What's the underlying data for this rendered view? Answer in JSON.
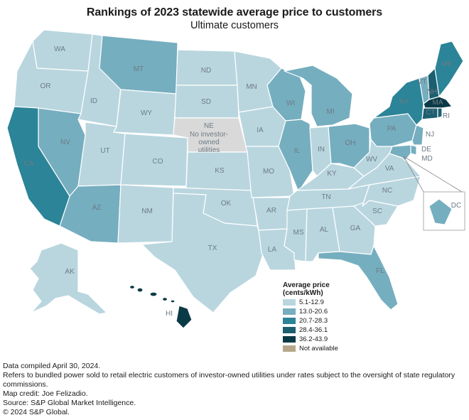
{
  "title": "Rankings of 2023 statewide average price to customers",
  "subtitle": "Ultimate customers",
  "legend": {
    "title_line1": "Average price",
    "title_line2": "(cents/kWh)",
    "items": [
      {
        "label": "5.1-12.9",
        "color": "#b9d6df"
      },
      {
        "label": "13.0-20.6",
        "color": "#75aebf"
      },
      {
        "label": "20.7-28.3",
        "color": "#2b8497"
      },
      {
        "label": "28.4-36.1",
        "color": "#1b5f70"
      },
      {
        "label": "36.2-43.9",
        "color": "#0b3a47"
      },
      {
        "label": "Not available",
        "color": "#b5a88a"
      }
    ]
  },
  "na_state": {
    "abbr": "NE",
    "note_line1": "No investor-",
    "note_line2": "owned",
    "note_line3": "utilities",
    "color": "#d9d9d9"
  },
  "states": {
    "WA": "5.1-12.9",
    "OR": "5.1-12.9",
    "ID": "5.1-12.9",
    "MT": "13.0-20.6",
    "WY": "5.1-12.9",
    "NV": "13.0-20.6",
    "UT": "5.1-12.9",
    "CO": "5.1-12.9",
    "AZ": "13.0-20.6",
    "NM": "5.1-12.9",
    "CA": "20.7-28.3",
    "ND": "5.1-12.9",
    "SD": "5.1-12.9",
    "KS": "5.1-12.9",
    "OK": "5.1-12.9",
    "TX": "5.1-12.9",
    "MN": "5.1-12.9",
    "IA": "5.1-12.9",
    "MO": "5.1-12.9",
    "AR": "5.1-12.9",
    "LA": "5.1-12.9",
    "WI": "13.0-20.6",
    "IL": "13.0-20.6",
    "MI": "13.0-20.6",
    "IN": "5.1-12.9",
    "OH": "13.0-20.6",
    "KY": "5.1-12.9",
    "TN": "5.1-12.9",
    "MS": "5.1-12.9",
    "AL": "5.1-12.9",
    "GA": "5.1-12.9",
    "FL": "13.0-20.6",
    "SC": "5.1-12.9",
    "NC": "5.1-12.9",
    "VA": "5.1-12.9",
    "WV": "5.1-12.9",
    "PA": "13.0-20.6",
    "NY": "20.7-28.3",
    "VT": "13.0-20.6",
    "NH": "28.4-36.1",
    "ME": "20.7-28.3",
    "MA": "36.2-43.9",
    "CT": "28.4-36.1",
    "RI": "28.4-36.1",
    "NJ": "13.0-20.6",
    "DE": "13.0-20.6",
    "MD": "13.0-20.6",
    "DC": "13.0-20.6",
    "AK": "5.1-12.9",
    "HI": "36.2-43.9"
  },
  "notes": [
    "Data compiled April 30, 2024.",
    "Refers to bundled power sold to retail electric customers of investor-owned utilities under rates subject to the oversight of state regulatory commissions.",
    "Map credit: Joe Felizadio.",
    "Source: S&P Global Market Intelligence.",
    "© 2024 S&P Global."
  ]
}
